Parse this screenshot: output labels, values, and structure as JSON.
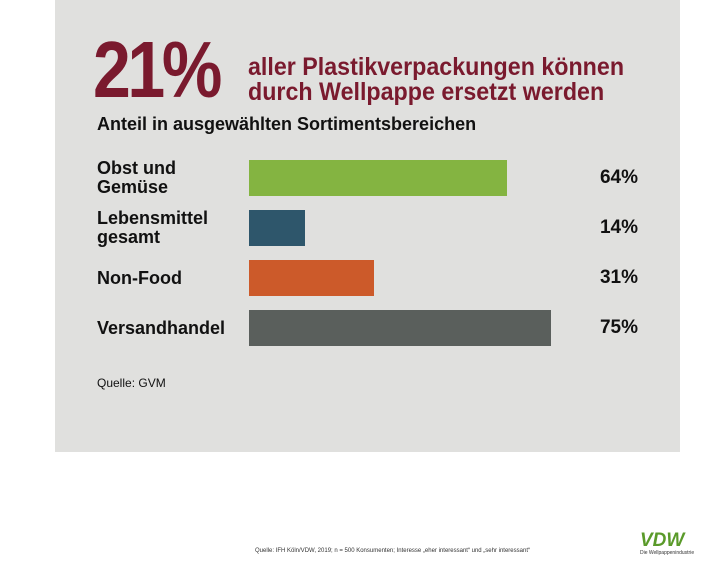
{
  "chart_data": {
    "type": "bar",
    "title": "21%",
    "subtitle": "aller Plastikverpackungen können durch Wellpappe ersetzt werden",
    "heading": "Anteil in ausgewählten Sortimentsbereichen",
    "categories": [
      "Obst und Gemüse",
      "Lebensmittel gesamt",
      "Non-Food",
      "Versandhandel"
    ],
    "values": [
      64,
      14,
      31,
      75
    ],
    "value_labels": [
      "64%",
      "14%",
      "31%",
      "75%"
    ],
    "colors": [
      "#84b441",
      "#2e566b",
      "#cc5a2a",
      "#5a5f5c"
    ],
    "source": "Quelle: GVM",
    "footnote": "Quelle: IFH Köln/VDW, 2019; n = 500 Konsumenten; Interesse „eher interessant“ und „sehr interessant“",
    "logo": "VDW",
    "logo_subtitle": "Die Wellpappenindustrie"
  }
}
